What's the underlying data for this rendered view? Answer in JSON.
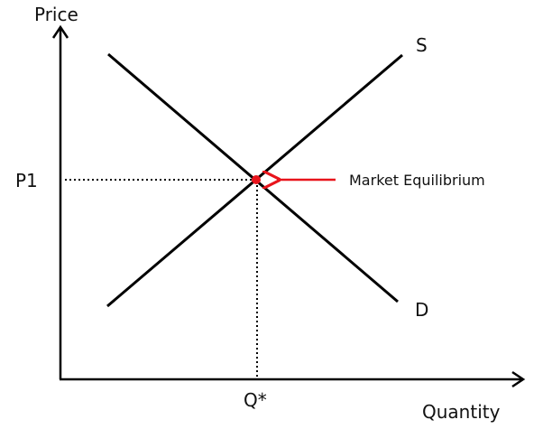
{
  "axes": {
    "y_label": "Price",
    "x_label": "Quantity"
  },
  "curves": {
    "supply_label": "S",
    "demand_label": "D"
  },
  "equilibrium": {
    "price_label": "P1",
    "quantity_label": "Q*",
    "annotation": "Market Equilibrium",
    "marker_color": "#e8141c",
    "arrow_color": "#e8141c"
  },
  "colors": {
    "line": "#000000",
    "text": "#111111"
  }
}
